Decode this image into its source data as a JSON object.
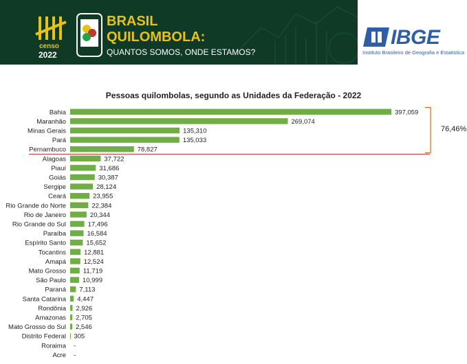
{
  "header": {
    "censo_word": "censo",
    "censo_year": "2022",
    "title_line1": "BRASIL",
    "title_line2": "QUILOMBOLA:",
    "subtitle": "QUANTOS SOMOS, ONDE ESTAMOS?",
    "org_name": "IBGE",
    "org_full": "Instituto Brasileiro de Geografia e Estatística"
  },
  "colors": {
    "bar": "#70ad47",
    "highlight_line": "#c0504d",
    "bracket": "#e36c0a",
    "banner": "#0f3b26",
    "accent": "#e8c21a",
    "ibge": "#2d5ea6"
  },
  "group_label": "76,46%",
  "chart_data": {
    "type": "bar",
    "orientation": "horizontal",
    "title": "Pessoas quilombolas, segundo as Unidades da Federação - 2022",
    "xlabel": "",
    "ylabel": "",
    "xlim": [
      0,
      397059
    ],
    "grid": false,
    "categories": [
      "Bahia",
      "Maranhão",
      "Minas Gerais",
      "Pará",
      "Pernambuco",
      "Alagoas",
      "Piauí",
      "Goiás",
      "Sergipe",
      "Ceará",
      "Rio Grande do Norte",
      "Rio de Janeiro",
      "Rio Grande do Sul",
      "Paraíba",
      "Espírito Santo",
      "Tocantins",
      "Amapá",
      "Mato Grosso",
      "São Paulo",
      "Paraná",
      "Santa Catarina",
      "Rondônia",
      "Amazonas",
      "Mato Grosso do Sul",
      "Distrito Federal",
      "Roraima",
      "Acre"
    ],
    "values": [
      397059,
      269074,
      135310,
      135033,
      78827,
      37722,
      31686,
      30387,
      28124,
      23955,
      22384,
      20344,
      17496,
      16584,
      15652,
      12881,
      12524,
      11719,
      10999,
      7113,
      4447,
      2926,
      2705,
      2546,
      305,
      0,
      0
    ],
    "value_labels": [
      "397,059",
      "269,074",
      "135,310",
      "135,033",
      "78,827",
      "37,722",
      "31,686",
      "30,387",
      "28,124",
      "23,955",
      "22,384",
      "20,344",
      "17,496",
      "16,584",
      "15,652",
      "12,881",
      "12,524",
      "11,719",
      "10,999",
      "7,113",
      "4,447",
      "2,926",
      "2,705",
      "2,546",
      "305",
      "-",
      "-"
    ],
    "highlight_group": {
      "categories": [
        "Bahia",
        "Maranhão",
        "Minas Gerais",
        "Pará",
        "Pernambuco"
      ],
      "label": "76,46%"
    }
  }
}
